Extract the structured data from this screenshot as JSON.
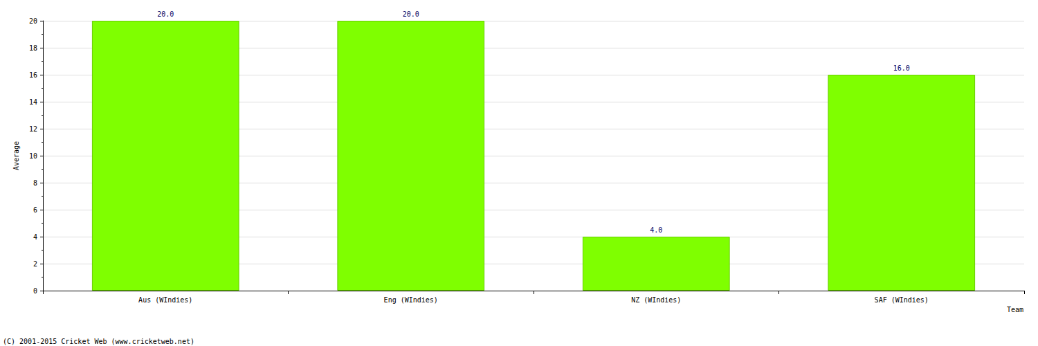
{
  "chart_data": {
    "type": "bar",
    "categories": [
      "Aus (WIndies)",
      "Eng (WIndies)",
      "NZ (WIndies)",
      "SAF (WIndies)"
    ],
    "values": [
      20,
      20,
      4,
      16
    ],
    "value_labels": [
      "20.0",
      "20.0",
      "4.0",
      "16.0"
    ],
    "color": "#7fff00",
    "x_label": "Team",
    "y_label": "Average",
    "ylim": [
      0,
      20
    ],
    "yticks": [
      0,
      2,
      4,
      6,
      8,
      10,
      12,
      14,
      16,
      18,
      20
    ],
    "grid": true,
    "data_labels": true,
    "annotations": [
      "(C) 2001-2015 Cricket Web (www.cricketweb.net)"
    ]
  }
}
